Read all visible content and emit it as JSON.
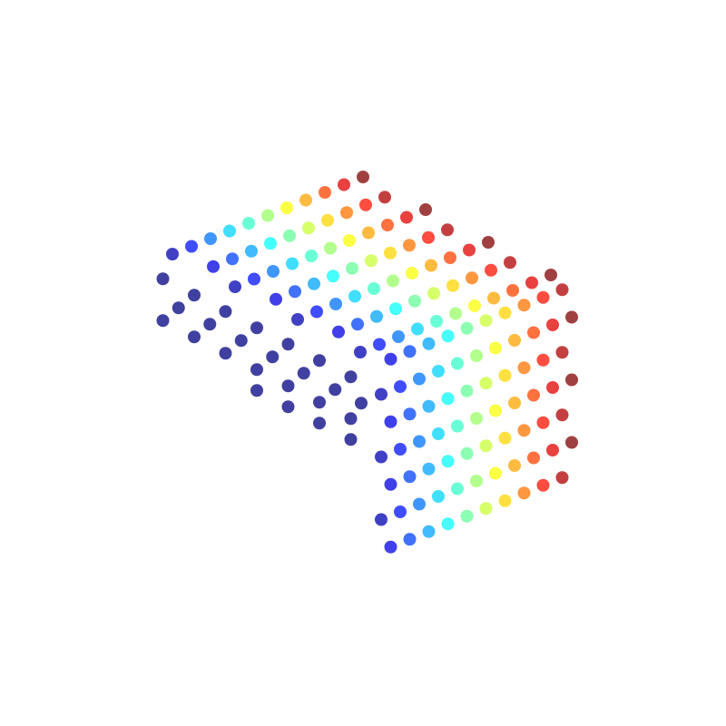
{
  "chart_data": {
    "type": "scatter3d",
    "colormap": "jet",
    "grid": false,
    "x": [
      -0.5,
      -0.5,
      -0.5,
      -0.5,
      -0.5,
      -0.5,
      -0.5,
      -0.5,
      -0.5,
      -0.5,
      -0.5,
      -0.5,
      -0.5,
      -0.5,
      -0.5,
      -0.5,
      -0.5,
      -0.5,
      -0.5,
      -0.5,
      -0.5,
      -0.5,
      -0.5,
      -0.5,
      -0.5,
      0.5,
      1.5,
      2.5,
      3.5,
      4.5,
      5.5,
      6.5,
      7.5,
      8.5,
      9.5,
      0,
      1,
      2,
      3,
      4,
      5,
      6,
      7,
      8,
      9,
      10,
      0.5,
      1.5,
      2.5,
      3.5,
      4.5,
      5.5,
      6.5,
      7.5,
      8.5,
      9.5,
      0,
      1,
      2,
      3,
      4,
      5,
      6,
      7,
      8,
      9,
      10,
      0.5,
      1.5,
      2.5,
      3.5,
      4.5,
      5.5,
      6.5,
      7.5,
      8.5,
      9.5,
      0,
      1,
      2,
      3,
      4,
      5,
      6,
      7,
      8,
      9,
      10,
      0.5,
      1.5,
      2.5,
      3.5,
      4.5,
      5.5,
      6.5,
      7.5,
      8.5,
      9.5,
      0,
      1,
      2,
      3,
      4,
      5,
      6,
      7,
      8,
      9,
      10,
      0.5,
      1.5,
      2.5,
      3.5,
      4.5,
      5.5,
      6.5,
      7.5,
      8.5,
      9.5,
      0,
      1,
      2,
      3,
      4,
      5,
      6,
      7,
      8,
      9,
      10,
      0.5,
      1.5,
      2.5,
      3.5,
      4.5,
      5.5,
      6.5,
      7.5,
      8.5,
      9.5,
      0,
      1,
      2,
      3,
      4,
      5,
      6,
      7,
      8,
      9,
      10,
      0.5,
      1.5,
      2.5,
      3.5,
      4.5,
      5.5,
      6.5,
      7.5,
      8.5,
      9.5,
      0,
      1,
      2,
      3,
      4,
      5,
      6,
      7,
      8,
      9,
      10
    ],
    "y": [
      0,
      1.5,
      3,
      4.5,
      6,
      7.5,
      9,
      0.75,
      2.25,
      3.75,
      5.25,
      6.75,
      8.25,
      9.5,
      0,
      1.5,
      3,
      4.5,
      6,
      7.5,
      9,
      4.5,
      6,
      7.5,
      9,
      10,
      10,
      10,
      10,
      10,
      10,
      10,
      10,
      10,
      10,
      10,
      10,
      10,
      10,
      10,
      10,
      10,
      10,
      10,
      10,
      10,
      10,
      10,
      10,
      10,
      10,
      10,
      10,
      10,
      10,
      10,
      10,
      10,
      10,
      10,
      10,
      10,
      10,
      10,
      10,
      10,
      10,
      10,
      10,
      10,
      10,
      10,
      10,
      10,
      10,
      10,
      10,
      10,
      10,
      10,
      10,
      10,
      10,
      10,
      10,
      10,
      10,
      10,
      10,
      10,
      10,
      10,
      10,
      10,
      10,
      10,
      10,
      10,
      0,
      0,
      0,
      0,
      0,
      0,
      0,
      0,
      0,
      0,
      0,
      1.5,
      1.5,
      1.5,
      1.5,
      1.5,
      1.5,
      1.5,
      1.5,
      1.5,
      1.5,
      3,
      3,
      3,
      3,
      3,
      3,
      3,
      3,
      3,
      3,
      3,
      4.5,
      4.5,
      4.5,
      4.5,
      4.5,
      4.5,
      4.5,
      4.5,
      4.5,
      4.5,
      6,
      6,
      6,
      6,
      6,
      6,
      6,
      6,
      6,
      6,
      6,
      7.5,
      7.5,
      7.5,
      7.5,
      7.5,
      7.5,
      7.5,
      7.5,
      7.5,
      7.5,
      9,
      9,
      9,
      9,
      9,
      9,
      9,
      9,
      9,
      9,
      9
    ],
    "z": [
      9,
      9,
      9,
      9,
      9,
      9,
      9,
      8,
      8,
      8,
      8,
      8,
      8,
      8,
      7,
      7,
      7,
      7,
      7,
      7,
      7,
      6,
      6,
      6,
      6,
      10,
      10,
      10,
      10,
      10,
      10,
      10,
      10,
      10,
      10,
      8.5,
      8.5,
      8.5,
      8.5,
      8.5,
      8.5,
      8.5,
      8.5,
      8.5,
      8.5,
      8.5,
      7,
      7,
      7,
      7,
      7,
      7,
      7,
      7,
      7,
      7,
      5.5,
      5.5,
      5.5,
      5.5,
      5.5,
      5.5,
      5.5,
      5.5,
      5.5,
      5.5,
      5.5,
      4,
      4,
      4,
      4,
      4,
      4,
      4,
      4,
      4,
      4,
      2.5,
      2.5,
      2.5,
      2.5,
      2.5,
      2.5,
      2.5,
      2.5,
      2.5,
      2.5,
      2.5,
      1,
      1,
      1,
      1,
      1,
      1,
      1,
      1,
      1,
      1,
      10,
      10,
      10,
      10,
      10,
      10,
      10,
      10,
      10,
      10,
      10,
      10,
      10,
      10,
      10,
      10,
      10,
      10,
      10,
      10,
      10,
      10,
      10,
      10,
      10,
      10,
      10,
      10,
      10,
      10,
      10,
      10,
      10,
      10,
      10,
      10,
      10,
      10,
      10,
      10,
      10,
      10,
      10,
      10,
      10,
      10,
      10,
      10,
      10,
      10,
      10,
      10,
      10,
      10,
      10,
      10,
      10,
      10,
      10,
      10,
      10,
      10,
      10,
      10,
      10,
      10,
      10,
      10,
      10,
      10,
      10,
      10,
      10,
      10
    ]
  }
}
